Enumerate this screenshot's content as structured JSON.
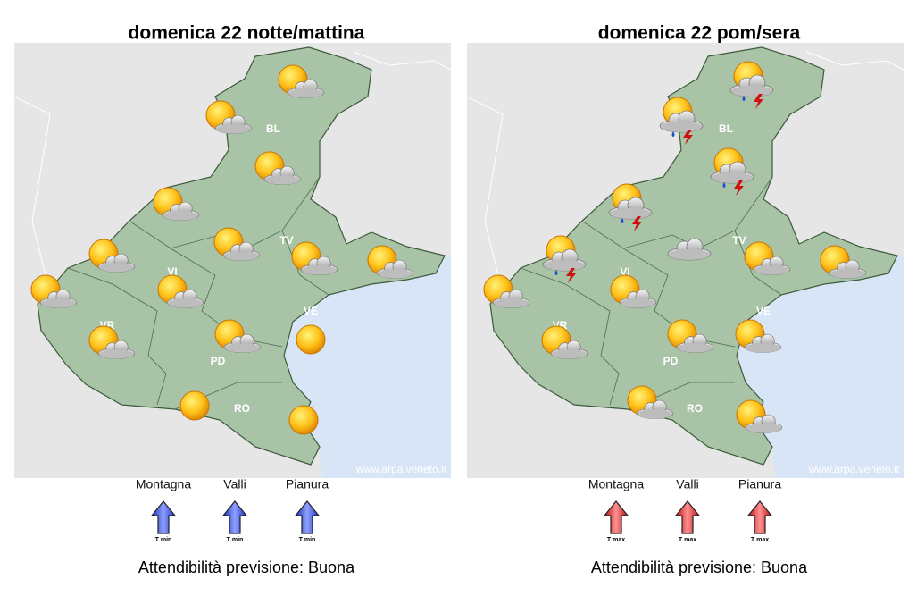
{
  "panels": [
    {
      "title": "domenica 22 notte/mattina",
      "provinces": [
        "BL",
        "TV",
        "VI",
        "VR",
        "PD",
        "VE",
        "RO"
      ],
      "credit": "www.arpa.veneto.it",
      "zones": [
        "Montagna",
        "Valli",
        "Pianura"
      ],
      "temperature_label": "T min",
      "reliability": "Attendibilità previsione: Buona"
    },
    {
      "title": "domenica 22 pom/sera",
      "provinces": [
        "BL",
        "TV",
        "VI",
        "VR",
        "PD",
        "VE",
        "RO"
      ],
      "credit": "www.arpa.veneto.it",
      "zones": [
        "Montagna",
        "Valli",
        "Pianura"
      ],
      "temperature_label": "T max",
      "reliability": "Attendibilità previsione: Buona"
    }
  ]
}
